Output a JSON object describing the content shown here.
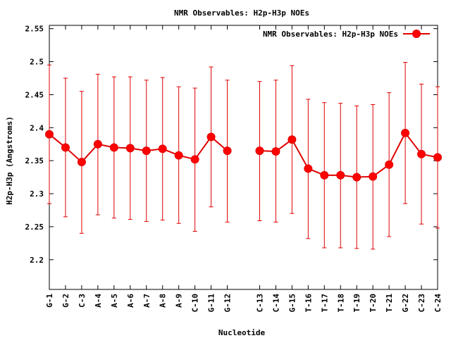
{
  "chart_data": {
    "type": "line",
    "title": "NMR Observables: H2p-H3p NOEs",
    "xlabel": "Nucleotide",
    "ylabel": "H2p-H3p (Angstroms)",
    "ylim": [
      2.155,
      2.555
    ],
    "yticks": [
      2.2,
      2.25,
      2.3,
      2.35,
      2.4,
      2.45,
      2.5,
      2.55
    ],
    "ytick_labels": [
      "2.2",
      "2.25",
      "2.3",
      "2.35",
      "2.4",
      "2.45",
      "2.5",
      "2.55"
    ],
    "xlim": [
      1,
      25
    ],
    "grid": false,
    "legend_position": "top-right",
    "series": [
      {
        "name": "NMR Observables: H2p-H3p NOEs",
        "color": "#e00000",
        "points": [
          {
            "label": "G-1",
            "x": 1,
            "y": 2.39,
            "lo": 2.285,
            "hi": 2.495
          },
          {
            "label": "G-2",
            "x": 2,
            "y": 2.37,
            "lo": 2.265,
            "hi": 2.475
          },
          {
            "label": "C-3",
            "x": 3,
            "y": 2.348,
            "lo": 2.24,
            "hi": 2.455
          },
          {
            "label": "A-4",
            "x": 4,
            "y": 2.375,
            "lo": 2.268,
            "hi": 2.481
          },
          {
            "label": "A-5",
            "x": 5,
            "y": 2.37,
            "lo": 2.263,
            "hi": 2.477
          },
          {
            "label": "A-6",
            "x": 6,
            "y": 2.369,
            "lo": 2.261,
            "hi": 2.477
          },
          {
            "label": "A-7",
            "x": 7,
            "y": 2.365,
            "lo": 2.258,
            "hi": 2.472
          },
          {
            "label": "A-8",
            "x": 8,
            "y": 2.368,
            "lo": 2.26,
            "hi": 2.476
          },
          {
            "label": "A-9",
            "x": 9,
            "y": 2.358,
            "lo": 2.255,
            "hi": 2.462
          },
          {
            "label": "C-10",
            "x": 10,
            "y": 2.352,
            "lo": 2.243,
            "hi": 2.46
          },
          {
            "label": "G-11",
            "x": 11,
            "y": 2.386,
            "lo": 2.28,
            "hi": 2.492
          },
          {
            "label": "G-12",
            "x": 12,
            "y": 2.365,
            "lo": 2.257,
            "hi": 2.472
          },
          {
            "label": "C-13",
            "x": 14,
            "y": 2.365,
            "lo": 2.259,
            "hi": 2.47
          },
          {
            "label": "C-14",
            "x": 15,
            "y": 2.364,
            "lo": 2.257,
            "hi": 2.472
          },
          {
            "label": "G-15",
            "x": 16,
            "y": 2.382,
            "lo": 2.27,
            "hi": 2.494
          },
          {
            "label": "T-16",
            "x": 17,
            "y": 2.338,
            "lo": 2.232,
            "hi": 2.443
          },
          {
            "label": "T-17",
            "x": 18,
            "y": 2.328,
            "lo": 2.218,
            "hi": 2.438
          },
          {
            "label": "T-18",
            "x": 19,
            "y": 2.328,
            "lo": 2.218,
            "hi": 2.437
          },
          {
            "label": "T-19",
            "x": 20,
            "y": 2.325,
            "lo": 2.217,
            "hi": 2.433
          },
          {
            "label": "T-20",
            "x": 21,
            "y": 2.326,
            "lo": 2.216,
            "hi": 2.435
          },
          {
            "label": "T-21",
            "x": 22,
            "y": 2.344,
            "lo": 2.235,
            "hi": 2.453
          },
          {
            "label": "G-22",
            "x": 23,
            "y": 2.392,
            "lo": 2.285,
            "hi": 2.499
          },
          {
            "label": "C-23",
            "x": 24,
            "y": 2.36,
            "lo": 2.254,
            "hi": 2.466
          },
          {
            "label": "C-24",
            "x": 25,
            "y": 2.355,
            "lo": 2.248,
            "hi": 2.462
          }
        ]
      }
    ]
  }
}
